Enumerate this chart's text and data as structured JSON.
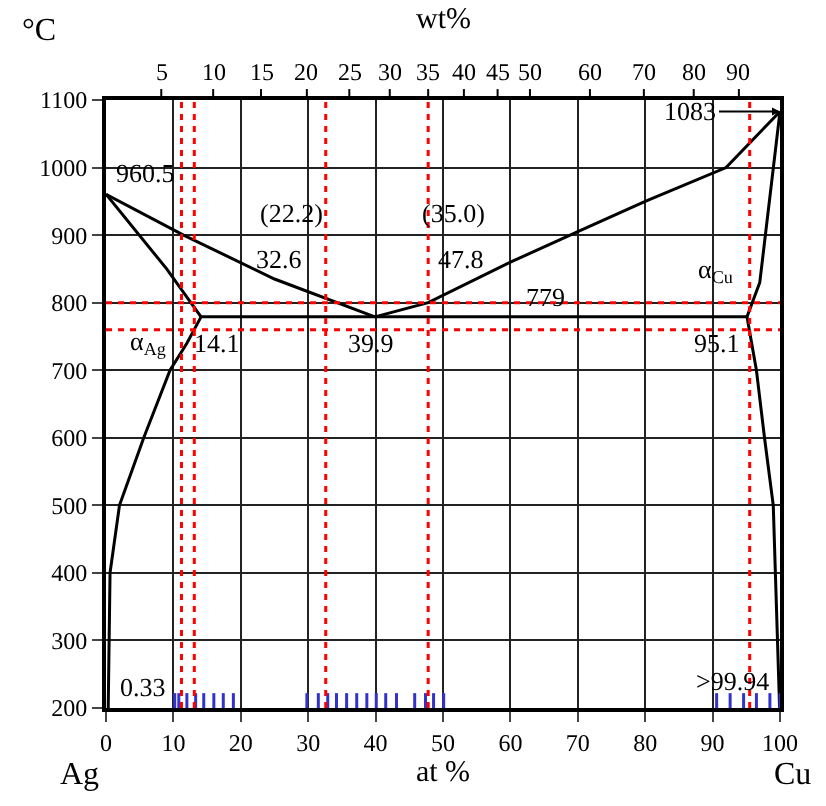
{
  "chart_data": {
    "type": "line",
    "xlabel": "at %",
    "x2label": "wt%",
    "ylabel": "°C",
    "xlim": [
      0,
      100
    ],
    "xticks": [
      0,
      10,
      20,
      30,
      40,
      50,
      60,
      70,
      80,
      90,
      100
    ],
    "ylim": [
      200,
      1100
    ],
    "yticks": [
      200,
      300,
      400,
      500,
      600,
      700,
      800,
      900,
      1000,
      1100
    ],
    "grid": true,
    "marker": "none",
    "line_style": "solid",
    "series": [
      {
        "color": "#000000",
        "x": [
          0,
          11.5,
          25,
          39.9
        ],
        "values": [
          960.5,
          900,
          835,
          779
        ]
      },
      {
        "color": "#000000",
        "x": [
          39.9,
          47.8,
          60,
          70,
          80,
          92,
          100
        ],
        "values": [
          779,
          800,
          860,
          905,
          950,
          1000,
          1083
        ]
      },
      {
        "color": "#000000",
        "x": [
          0,
          9,
          14.1
        ],
        "values": [
          960.5,
          850,
          779
        ]
      },
      {
        "color": "#000000",
        "x": [
          14.1,
          12,
          9.5,
          5.6,
          2,
          0.6,
          0.33
        ],
        "values": [
          779,
          740,
          700,
          600,
          500,
          400,
          200
        ]
      },
      {
        "color": "#000000",
        "x": [
          100,
          97,
          95.1
        ],
        "values": [
          1083,
          830,
          779
        ]
      },
      {
        "color": "#000000",
        "x": [
          95.1,
          96.5,
          97.7,
          99,
          99.94
        ],
        "values": [
          779,
          700,
          600,
          500,
          200
        ]
      },
      {
        "color": "#000000",
        "x": [
          14.1,
          95.1
        ],
        "values": [
          779,
          779
        ]
      },
      {
        "color": "#3333cc",
        "x": [
          10.2,
          10.2,
          null,
          10.8,
          10.8,
          null,
          12.0,
          12.0,
          null,
          13.3,
          13.3,
          null,
          14.5,
          14.5,
          null,
          16.0,
          16.0,
          null,
          17.4,
          17.4,
          null,
          18.9,
          18.9,
          null,
          29.8,
          29.8,
          null,
          31.5,
          31.5,
          null,
          32.9,
          32.9,
          null,
          34.2,
          34.2,
          null,
          35.7,
          35.7,
          null,
          37.2,
          37.2,
          null,
          38.7,
          38.7,
          null,
          40.1,
          40.1,
          null,
          41.5,
          41.5,
          null,
          43.1,
          43.1,
          null,
          45.8,
          45.8,
          null,
          47.4,
          47.4,
          null,
          48.6,
          48.6,
          null,
          50.1,
          50.1,
          null,
          90.6,
          90.6,
          null,
          92.6,
          92.6,
          null,
          94.6,
          94.6,
          null,
          96.5,
          96.5,
          null,
          98.5,
          98.5,
          null,
          100,
          100
        ],
        "values": [
          200,
          222,
          null,
          200,
          222,
          null,
          200,
          222,
          null,
          200,
          222,
          null,
          200,
          222,
          null,
          200,
          222,
          null,
          200,
          222,
          null,
          200,
          222,
          null,
          200,
          222,
          null,
          200,
          222,
          null,
          200,
          222,
          null,
          200,
          222,
          null,
          200,
          222,
          null,
          200,
          222,
          null,
          200,
          222,
          null,
          200,
          222,
          null,
          200,
          222,
          null,
          200,
          222,
          null,
          200,
          222,
          null,
          200,
          222,
          null,
          200,
          222,
          null,
          200,
          222,
          null,
          200,
          222,
          null,
          200,
          222,
          null,
          200,
          222,
          null,
          200,
          222,
          null,
          200,
          222,
          null,
          200,
          222
        ]
      }
    ],
    "ref_lines": [
      {
        "axis": "y",
        "value": 800,
        "color": "#ff0000",
        "line_style": "dotted"
      },
      {
        "axis": "y",
        "value": 760,
        "color": "#ff0000",
        "line_style": "dotted"
      },
      {
        "axis": "x",
        "value": 11.2,
        "color": "#ff0000",
        "line_style": "dotted"
      },
      {
        "axis": "x",
        "value": 13.1,
        "color": "#ff0000",
        "line_style": "dotted"
      },
      {
        "axis": "x",
        "value": 32.6,
        "color": "#ff0000",
        "line_style": "dotted"
      },
      {
        "axis": "x",
        "value": 47.8,
        "color": "#ff0000",
        "line_style": "dotted"
      },
      {
        "axis": "x",
        "value": 95.5,
        "color": "#ff0000",
        "line_style": "dotted"
      }
    ],
    "annotations": [
      {
        "text": "960.5",
        "x": 0,
        "y": 960.5
      },
      {
        "text": "32.6",
        "x": 32.6,
        "y": 800
      },
      {
        "text": "47.8",
        "x": 47.8,
        "y": 800
      },
      {
        "text": "1083",
        "x": 100,
        "y": 1083
      },
      {
        "text": "779",
        "x": 65.3,
        "y": 779
      },
      {
        "text": "14.1",
        "x": 14.1,
        "y": 779
      },
      {
        "text": "39.9",
        "x": 39.9,
        "y": 779
      },
      {
        "text": "95.1",
        "x": 95.1,
        "y": 779
      },
      {
        "text": "0.33",
        "x": 0.33,
        "y": 200
      },
      {
        "text": ">99.94",
        "x": 99.94,
        "y": 200
      },
      "(22.2)",
      "(35.0)",
      "α$_{Cu}$",
      "α$_{Ag}$",
      "Ag",
      "Cu",
      "5",
      "10",
      "15",
      "20",
      "25",
      "30",
      "35",
      "40",
      "45",
      "50",
      "60",
      "70",
      "80",
      "90"
    ]
  }
}
